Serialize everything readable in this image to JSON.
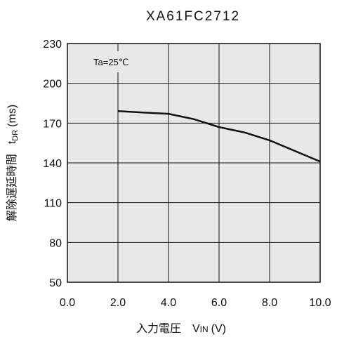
{
  "chart_data": {
    "type": "line",
    "title": "XA61FC2712",
    "annotation": "Ta=25℃",
    "xlabel": {
      "text": "入力電圧",
      "symbol": "V",
      "subscript": "IN",
      "unit": "(V)"
    },
    "ylabel": {
      "text": "解除遅延時間",
      "symbol": "t",
      "subscript": "DR",
      "unit": "(ms)"
    },
    "xlim": [
      0,
      10
    ],
    "ylim": [
      50,
      230
    ],
    "x_ticks": [
      "0.0",
      "2.0",
      "4.0",
      "6.0",
      "8.0",
      "10.0"
    ],
    "y_ticks": [
      "50",
      "80",
      "110",
      "140",
      "170",
      "200",
      "230"
    ],
    "grid": true,
    "plot_background": "#e8e8e8",
    "line_color": "#111111",
    "series": [
      {
        "x": [
          2.0,
          3.0,
          4.0,
          5.0,
          6.0,
          7.0,
          8.0,
          9.0,
          10.0
        ],
        "y": [
          179,
          178,
          177,
          173,
          167,
          163,
          157,
          149,
          141
        ]
      }
    ]
  }
}
